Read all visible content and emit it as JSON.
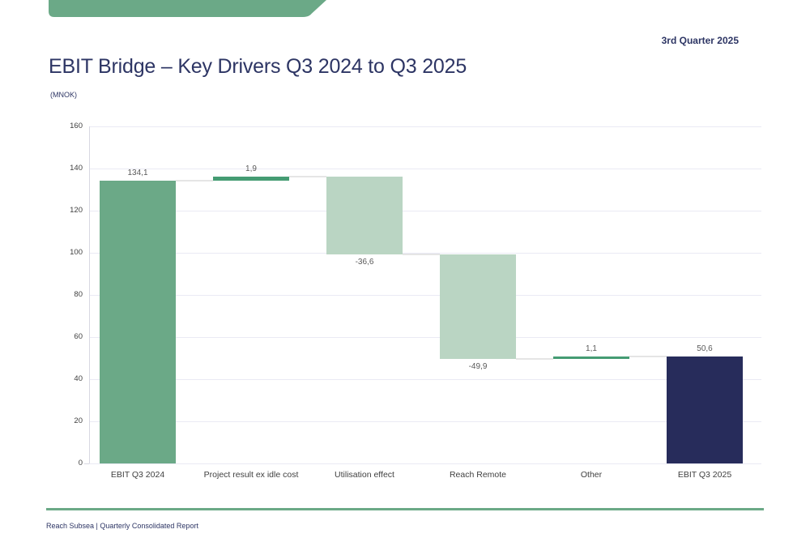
{
  "page": {
    "quarter_label": "3rd Quarter 2025",
    "title": "EBIT Bridge – Key Drivers Q3 2024 to Q3 2025",
    "unit_label": "(MNOK)",
    "footer_text": "Reach Subsea | Quarterly Consolidated Report"
  },
  "colors": {
    "brand_green": "#6BA987",
    "dark_green": "#459C73",
    "light_green": "#BAD5C3",
    "navy": "#272C5B",
    "title_text": "#2D3564",
    "grid_line": "#EAEAF4",
    "axis_line": "#D8D8E2",
    "connector": "#E5E5E5",
    "value_label": "#595959",
    "tick_label": "#404040",
    "category_label": "#3F3F3F"
  },
  "chart_data": {
    "type": "waterfall",
    "title": "EBIT Bridge – Key Drivers Q3 2024 to Q3 2025",
    "unit": "MNOK",
    "ylim": [
      0,
      160
    ],
    "yticks": [
      0,
      20,
      40,
      60,
      80,
      100,
      120,
      140,
      160
    ],
    "grid": true,
    "legend": "none",
    "bars": [
      {
        "category": "EBIT Q3 2024",
        "value": 134.1,
        "label": "134,1",
        "kind": "total",
        "color": "#6BA987"
      },
      {
        "category": "Project result ex idle cost",
        "value": 1.9,
        "label": "1,9",
        "kind": "increase",
        "color": "#459C73"
      },
      {
        "category": "Utilisation effect",
        "value": -36.6,
        "label": "-36,6",
        "kind": "decrease",
        "color": "#BAD5C3"
      },
      {
        "category": "Reach Remote",
        "value": -49.9,
        "label": "-49,9",
        "kind": "decrease",
        "color": "#BAD5C3"
      },
      {
        "category": "Other",
        "value": 1.1,
        "label": "1,1",
        "kind": "increase",
        "color": "#459C73"
      },
      {
        "category": "EBIT Q3 2025",
        "value": 50.6,
        "label": "50,6",
        "kind": "total",
        "color": "#272C5B"
      }
    ]
  }
}
